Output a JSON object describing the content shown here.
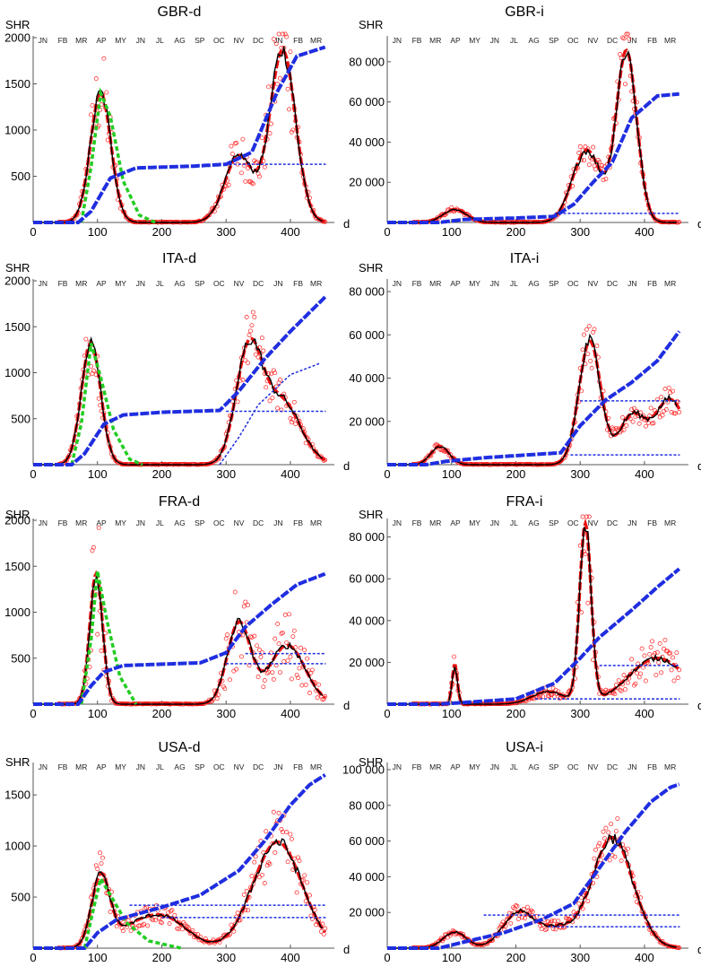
{
  "figure": {
    "description_months": [
      "JN",
      "FB",
      "MR",
      "AP",
      "MY",
      "JN",
      "JL",
      "AG",
      "SP",
      "OC",
      "NV",
      "DC",
      "JN",
      "FB",
      "MR"
    ],
    "month_days": [
      15,
      46,
      75,
      106,
      136,
      167,
      197,
      228,
      259,
      289,
      320,
      350,
      381,
      412,
      440
    ],
    "colors": {
      "observed": "#ff2020",
      "smooth": "#000000",
      "model": "#e81010",
      "cumulative": "#1f2ee0",
      "early": "#22cc22",
      "baseline": "#1f2ee0"
    }
  },
  "chart_data": [
    {
      "type": "scatter",
      "title": "GBR-d",
      "ylabel": "SHR",
      "xlabel": "d",
      "xlim": [
        0,
        460
      ],
      "ylim": [
        0,
        2000
      ],
      "yticks": [
        500,
        1000,
        1500,
        2000
      ],
      "ytick_labels": [
        "500",
        "1000",
        "1500",
        "2000"
      ],
      "xticks": [
        0,
        100,
        200,
        300,
        400
      ],
      "xtick_labels": [
        "0",
        "100",
        "200",
        "300",
        "400"
      ],
      "waves": [
        {
          "c": 105,
          "h": 1400,
          "w": 16
        },
        {
          "c": 320,
          "h": 720,
          "w": 22
        },
        {
          "c": 388,
          "h": 1860,
          "w": 20
        }
      ],
      "noise": 0.35,
      "cumulative": [
        [
          70,
          0
        ],
        [
          90,
          120
        ],
        [
          120,
          480
        ],
        [
          160,
          590
        ],
        [
          250,
          610
        ],
        [
          300,
          630
        ],
        [
          340,
          760
        ],
        [
          380,
          1420
        ],
        [
          410,
          1800
        ],
        [
          455,
          1900
        ]
      ],
      "early": [
        [
          75,
          0
        ],
        [
          90,
          600
        ],
        [
          105,
          1400
        ],
        [
          120,
          1150
        ],
        [
          140,
          450
        ],
        [
          165,
          80
        ],
        [
          190,
          0
        ]
      ],
      "baselines": [
        {
          "from": 305,
          "to": 455,
          "value": 630
        }
      ]
    },
    {
      "type": "scatter",
      "title": "GBR-i",
      "ylabel": "SHR",
      "xlabel": "d",
      "xlim": [
        0,
        460
      ],
      "ylim": [
        0,
        92000
      ],
      "yticks": [
        20000,
        40000,
        60000,
        80000
      ],
      "ytick_labels": [
        "20 000",
        "40 000",
        "60 000",
        "80 000"
      ],
      "xticks": [
        0,
        100,
        200,
        300,
        400
      ],
      "xtick_labels": [
        "0",
        "100",
        "200",
        "300",
        "400"
      ],
      "waves": [
        {
          "c": 105,
          "h": 6500,
          "w": 18
        },
        {
          "c": 310,
          "h": 36000,
          "w": 22
        },
        {
          "c": 372,
          "h": 85000,
          "w": 16
        }
      ],
      "noise": 0.2,
      "cumulative": [
        [
          80,
          0
        ],
        [
          120,
          1500
        ],
        [
          200,
          2200
        ],
        [
          260,
          3000
        ],
        [
          290,
          9000
        ],
        [
          320,
          20000
        ],
        [
          350,
          30000
        ],
        [
          380,
          52000
        ],
        [
          420,
          63000
        ],
        [
          455,
          64000
        ]
      ],
      "early": [],
      "baselines": [
        {
          "from": 260,
          "to": 455,
          "value": 4500
        }
      ]
    },
    {
      "type": "scatter",
      "title": "ITA-d",
      "ylabel": "SHR",
      "xlabel": "d",
      "xlim": [
        0,
        460
      ],
      "ylim": [
        0,
        2000
      ],
      "yticks": [
        500,
        1000,
        1500,
        2000
      ],
      "ytick_labels": [
        "500",
        "1000",
        "1500",
        "2000"
      ],
      "xticks": [
        0,
        100,
        200,
        300,
        400
      ],
      "xtick_labels": [
        "0",
        "100",
        "200",
        "300",
        "400"
      ],
      "waves": [
        {
          "c": 90,
          "h": 1320,
          "w": 15
        },
        {
          "c": 335,
          "h": 1180,
          "w": 20
        },
        {
          "c": 385,
          "h": 700,
          "w": 30
        }
      ],
      "noise": 0.25,
      "cumulative": [
        [
          60,
          0
        ],
        [
          80,
          120
        ],
        [
          110,
          440
        ],
        [
          140,
          540
        ],
        [
          200,
          570
        ],
        [
          290,
          590
        ],
        [
          320,
          800
        ],
        [
          360,
          1150
        ],
        [
          400,
          1450
        ],
        [
          455,
          1830
        ]
      ],
      "early": [
        [
          60,
          0
        ],
        [
          75,
          450
        ],
        [
          90,
          1320
        ],
        [
          105,
          950
        ],
        [
          125,
          380
        ],
        [
          150,
          60
        ],
        [
          170,
          0
        ]
      ],
      "baselines": [
        {
          "from": 300,
          "to": 455,
          "value": 580
        },
        {
          "from": 290,
          "to": 445,
          "value": 0,
          "curve": [
            [
              290,
              0
            ],
            [
              320,
              300
            ],
            [
              350,
              650
            ],
            [
              400,
              980
            ],
            [
              445,
              1100
            ]
          ]
        }
      ]
    },
    {
      "type": "scatter",
      "title": "ITA-i",
      "ylabel": "SHR",
      "xlabel": "d",
      "xlim": [
        0,
        460
      ],
      "ylim": [
        0,
        85000
      ],
      "yticks": [
        20000,
        40000,
        60000,
        80000
      ],
      "ytick_labels": [
        "20 000",
        "40 000",
        "60 000",
        "80 000"
      ],
      "xticks": [
        0,
        100,
        200,
        300,
        400
      ],
      "xtick_labels": [
        "0",
        "100",
        "200",
        "300",
        "400"
      ],
      "waves": [
        {
          "c": 82,
          "h": 8500,
          "w": 14
        },
        {
          "c": 315,
          "h": 57000,
          "w": 17
        },
        {
          "c": 380,
          "h": 22000,
          "w": 20
        },
        {
          "c": 440,
          "h": 30000,
          "w": 25
        }
      ],
      "noise": 0.22,
      "cumulative": [
        [
          60,
          0
        ],
        [
          90,
          1500
        ],
        [
          150,
          3200
        ],
        [
          270,
          5500
        ],
        [
          300,
          18000
        ],
        [
          340,
          30000
        ],
        [
          380,
          38000
        ],
        [
          420,
          48000
        ],
        [
          455,
          62000
        ]
      ],
      "early": [],
      "baselines": [
        {
          "from": 285,
          "to": 455,
          "value": 4500
        },
        {
          "from": 300,
          "to": 455,
          "value": 29500
        }
      ]
    },
    {
      "type": "scatter",
      "title": "FRA-d",
      "ylabel": "SHR",
      "xlabel": "d",
      "xlim": [
        0,
        460
      ],
      "ylim": [
        0,
        2000
      ],
      "yticks": [
        500,
        1000,
        1500,
        2000
      ],
      "ytick_labels": [
        "500",
        "1000",
        "1500",
        "2000"
      ],
      "xticks": [
        0,
        100,
        200,
        300,
        400
      ],
      "xtick_labels": [
        "0",
        "100",
        "200",
        "300",
        "400"
      ],
      "waves": [
        {
          "c": 98,
          "h": 1420,
          "w": 10
        },
        {
          "c": 320,
          "h": 880,
          "w": 18
        },
        {
          "c": 395,
          "h": 640,
          "w": 28
        }
      ],
      "noise": 0.6,
      "cumulative": [
        [
          70,
          0
        ],
        [
          90,
          200
        ],
        [
          110,
          350
        ],
        [
          140,
          420
        ],
        [
          260,
          450
        ],
        [
          300,
          560
        ],
        [
          330,
          840
        ],
        [
          370,
          1080
        ],
        [
          410,
          1300
        ],
        [
          455,
          1420
        ]
      ],
      "early": [
        [
          75,
          0
        ],
        [
          90,
          700
        ],
        [
          100,
          1450
        ],
        [
          115,
          900
        ],
        [
          135,
          300
        ],
        [
          160,
          0
        ]
      ],
      "baselines": [
        {
          "from": 300,
          "to": 455,
          "value": 440
        },
        {
          "from": 330,
          "to": 455,
          "value": 550
        }
      ]
    },
    {
      "type": "scatter",
      "title": "FRA-i",
      "ylabel": "SHR",
      "xlabel": "d",
      "xlim": [
        0,
        460
      ],
      "ylim": [
        0,
        88000
      ],
      "yticks": [
        20000,
        40000,
        60000,
        80000
      ],
      "ytick_labels": [
        "20 000",
        "40 000",
        "60 000",
        "80 000"
      ],
      "xticks": [
        0,
        100,
        200,
        300,
        400
      ],
      "xtick_labels": [
        "0",
        "100",
        "200",
        "300",
        "400"
      ],
      "waves": [
        {
          "c": 105,
          "h": 19000,
          "w": 4
        },
        {
          "c": 308,
          "h": 85000,
          "w": 9
        },
        {
          "c": 420,
          "h": 22000,
          "w": 45
        },
        {
          "c": 250,
          "h": 6000,
          "w": 25
        }
      ],
      "noise": 0.45,
      "cumulative": [
        [
          80,
          0
        ],
        [
          120,
          800
        ],
        [
          200,
          2500
        ],
        [
          260,
          10000
        ],
        [
          300,
          22000
        ],
        [
          330,
          32000
        ],
        [
          380,
          45000
        ],
        [
          420,
          56000
        ],
        [
          455,
          65000
        ]
      ],
      "early": [],
      "baselines": [
        {
          "from": 230,
          "to": 455,
          "value": 2500
        },
        {
          "from": 330,
          "to": 455,
          "value": 18500
        }
      ]
    },
    {
      "type": "scatter",
      "title": "USA-d",
      "ylabel": "SHR",
      "xlabel": "d",
      "xlim": [
        0,
        460
      ],
      "ylim": [
        0,
        1800
      ],
      "yticks": [
        500,
        1000,
        1500
      ],
      "ytick_labels": [
        "500",
        "1000",
        "1500"
      ],
      "xticks": [
        0,
        100,
        200,
        300,
        400
      ],
      "xtick_labels": [
        "0",
        "100",
        "200",
        "300",
        "400"
      ],
      "waves": [
        {
          "c": 105,
          "h": 680,
          "w": 14
        },
        {
          "c": 205,
          "h": 290,
          "w": 35
        },
        {
          "c": 380,
          "h": 1040,
          "w": 38
        },
        {
          "c": 150,
          "h": 150,
          "w": 30
        }
      ],
      "noise": 0.3,
      "cumulative": [
        [
          80,
          0
        ],
        [
          100,
          150
        ],
        [
          130,
          280
        ],
        [
          200,
          400
        ],
        [
          260,
          520
        ],
        [
          320,
          760
        ],
        [
          360,
          1050
        ],
        [
          400,
          1400
        ],
        [
          430,
          1600
        ],
        [
          455,
          1700
        ]
      ],
      "early": [
        [
          80,
          0
        ],
        [
          95,
          420
        ],
        [
          105,
          680
        ],
        [
          120,
          520
        ],
        [
          145,
          250
        ],
        [
          180,
          70
        ],
        [
          230,
          0
        ]
      ],
      "baselines": [
        {
          "from": 150,
          "to": 455,
          "value": 420
        },
        {
          "from": 200,
          "to": 455,
          "value": 300
        }
      ]
    },
    {
      "type": "scatter",
      "title": "USA-i",
      "ylabel": "SHR",
      "xlabel": "d",
      "xlim": [
        0,
        460
      ],
      "ylim": [
        0,
        103000
      ],
      "yticks": [
        20000,
        40000,
        60000,
        80000,
        100000
      ],
      "ytick_labels": [
        "20 000",
        "40 000",
        "60 000",
        "80 000",
        "100 000"
      ],
      "xticks": [
        0,
        100,
        200,
        300,
        400
      ],
      "xtick_labels": [
        "0",
        "100",
        "200",
        "300",
        "400"
      ],
      "waves": [
        {
          "c": 105,
          "h": 9000,
          "w": 18
        },
        {
          "c": 205,
          "h": 20000,
          "w": 25
        },
        {
          "c": 350,
          "h": 62000,
          "w": 32
        },
        {
          "c": 265,
          "h": 10000,
          "w": 25
        }
      ],
      "noise": 0.22,
      "cumulative": [
        [
          80,
          0
        ],
        [
          120,
          3500
        ],
        [
          180,
          8500
        ],
        [
          240,
          16000
        ],
        [
          290,
          25000
        ],
        [
          330,
          45000
        ],
        [
          370,
          65000
        ],
        [
          410,
          82000
        ],
        [
          440,
          90000
        ],
        [
          455,
          92000
        ]
      ],
      "early": [],
      "baselines": [
        {
          "from": 150,
          "to": 455,
          "value": 18500
        },
        {
          "from": 250,
          "to": 455,
          "value": 12000
        }
      ]
    }
  ]
}
